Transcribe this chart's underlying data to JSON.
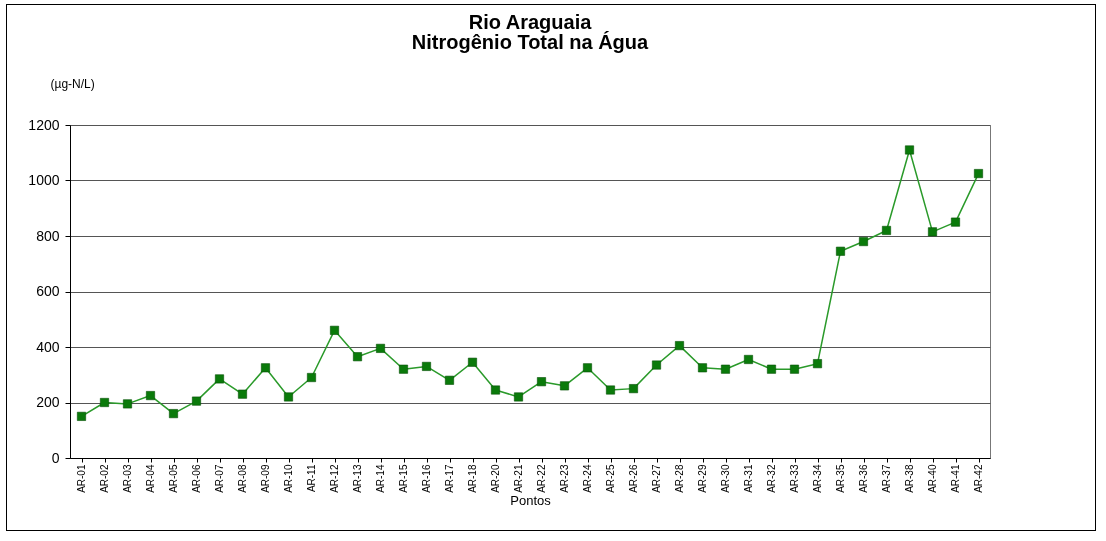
{
  "chart_data": {
    "type": "line",
    "title": "Rio Araguaia",
    "subtitle": "Nitrogênio Total na Água",
    "xlabel": "Pontos",
    "ylabel": "(µg-N/L)",
    "categories": [
      "AR-01",
      "AR-02",
      "AR-03",
      "AR-04",
      "AR-05",
      "AR-06",
      "AR-07",
      "AR-08",
      "AR-09",
      "AR-10",
      "AR-11",
      "AR-12",
      "AR-13",
      "AR-14",
      "AR-15",
      "AR-16",
      "AR-17",
      "AR-18",
      "AR-20",
      "AR-21",
      "AR-22",
      "AR-23",
      "AR-24",
      "AR-25",
      "AR-26",
      "AR-27",
      "AR-28",
      "AR-29",
      "AR-30",
      "AR-31",
      "AR-32",
      "AR-33",
      "AR-34",
      "AR-35",
      "AR-36",
      "AR-37",
      "AR-38",
      "AR-40",
      "AR-41",
      "AR-42"
    ],
    "series": [
      {
        "color": "#2a9a2a",
        "values": [
          150,
          200,
          195,
          225,
          160,
          205,
          285,
          230,
          325,
          220,
          290,
          460,
          365,
          395,
          320,
          330,
          280,
          345,
          245,
          220,
          275,
          260,
          325,
          245,
          250,
          335,
          405,
          325,
          320,
          355,
          320,
          320,
          340,
          745,
          780,
          820,
          1110,
          815,
          850,
          1025
        ]
      }
    ],
    "ylim": [
      0,
      1200
    ],
    "yticks": [
      0,
      200,
      400,
      600,
      800,
      1000,
      1200
    ],
    "grid": "y",
    "marker": "square",
    "line_style": "solid"
  }
}
